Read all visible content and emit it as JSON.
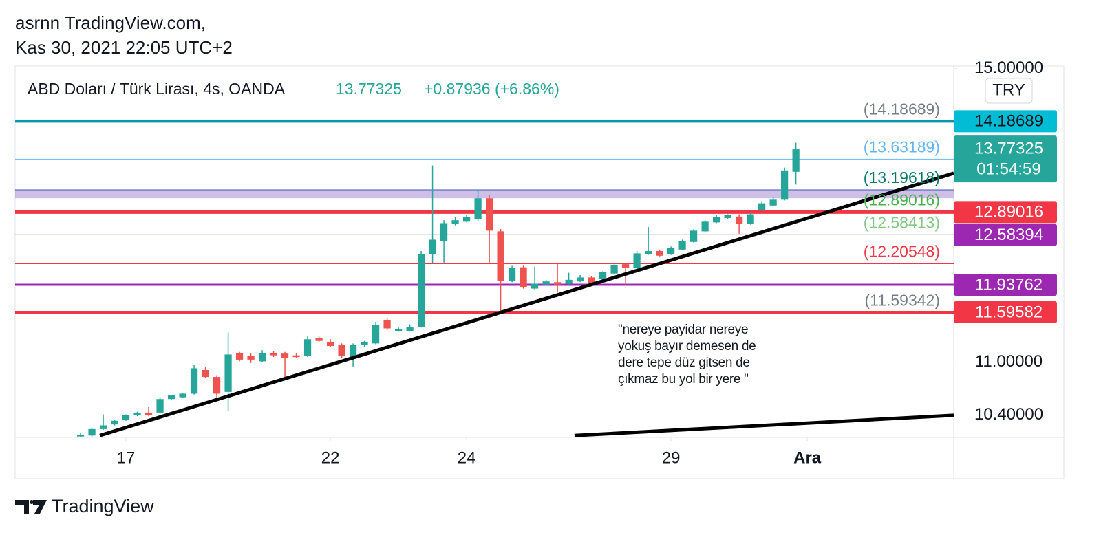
{
  "header": {
    "user": "asrnn TradingView.com,",
    "date": "Kas 30, 2021 22:05 UTC+2"
  },
  "footer": {
    "brand": "TradingView"
  },
  "chart_data": {
    "type": "candlestick",
    "title": "ABD Doları / Türk Lirası, 4s, OANDA",
    "last_price": 13.77325,
    "change": "+0.87936 (+6.86%)",
    "currency": "TRY",
    "countdown": "01:54:59",
    "up_color": "#26a69a",
    "down_color": "#ef5350",
    "log_scale": true,
    "open": [
      10.17,
      10.18,
      10.25,
      10.3,
      10.35,
      10.4,
      10.43,
      10.43,
      10.58,
      10.6,
      10.64,
      10.91,
      10.83,
      10.66,
      11.11,
      11.07,
      11.01,
      11.11,
      11.1,
      11.08,
      11.07,
      11.28,
      11.24,
      11.2,
      11.05,
      11.2,
      11.22,
      11.5,
      11.37,
      11.37,
      11.42,
      12.33,
      12.5,
      12.73,
      12.76,
      12.8,
      13.08,
      12.63,
      11.99,
      12.16,
      11.89,
      11.94,
      11.97,
      11.95,
      11.98,
      12.03,
      12.01,
      12.08,
      12.2,
      12.15,
      12.33,
      12.37,
      12.33,
      12.39,
      12.49,
      12.63,
      12.75,
      12.81,
      12.83,
      12.73,
      12.92,
      12.98,
      13.06,
      13.45
    ],
    "high": [
      10.21,
      10.26,
      10.41,
      10.35,
      10.41,
      10.44,
      10.49,
      10.6,
      10.62,
      10.65,
      10.97,
      10.94,
      10.85,
      11.35,
      11.12,
      11.11,
      11.14,
      11.13,
      11.12,
      11.11,
      11.31,
      11.3,
      11.27,
      11.22,
      11.22,
      11.25,
      11.48,
      11.52,
      11.41,
      11.45,
      12.37,
      13.54,
      12.78,
      12.82,
      12.85,
      13.2,
      13.12,
      12.66,
      12.18,
      12.18,
      12.17,
      12.0,
      12.22,
      12.09,
      12.06,
      12.05,
      12.11,
      12.2,
      12.22,
      12.37,
      12.69,
      12.39,
      12.43,
      12.52,
      12.66,
      12.78,
      12.85,
      12.86,
      12.86,
      12.89,
      13.04,
      13.09,
      13.51,
      13.87
    ],
    "low": [
      10.16,
      10.17,
      10.24,
      10.29,
      10.34,
      10.39,
      10.39,
      10.42,
      10.57,
      10.59,
      10.63,
      10.82,
      10.58,
      10.45,
      11.01,
      10.99,
      11.0,
      11.06,
      10.82,
      11.05,
      11.06,
      11.24,
      11.18,
      11.05,
      10.95,
      11.18,
      11.21,
      11.38,
      11.36,
      11.36,
      11.41,
      12.21,
      12.22,
      12.71,
      12.75,
      12.76,
      12.22,
      11.61,
      11.97,
      11.89,
      11.87,
      11.93,
      11.84,
      11.94,
      11.97,
      11.95,
      12.0,
      12.07,
      11.94,
      12.13,
      12.32,
      12.3,
      12.32,
      12.38,
      12.48,
      12.62,
      12.74,
      12.8,
      12.6,
      12.72,
      12.91,
      12.97,
      13.05,
      13.27
    ],
    "close": [
      10.19,
      10.25,
      10.29,
      10.34,
      10.4,
      10.43,
      10.4,
      10.58,
      10.62,
      10.64,
      10.93,
      10.83,
      10.64,
      11.09,
      11.03,
      11.03,
      11.11,
      11.08,
      11.05,
      11.06,
      11.27,
      11.25,
      11.19,
      11.07,
      11.2,
      11.24,
      11.44,
      11.4,
      11.39,
      11.42,
      12.33,
      12.52,
      12.74,
      12.78,
      12.82,
      13.08,
      12.64,
      11.99,
      12.15,
      11.91,
      11.95,
      11.98,
      11.94,
      12.0,
      12.03,
      11.96,
      12.1,
      12.19,
      12.15,
      12.34,
      12.37,
      12.31,
      12.41,
      12.5,
      12.64,
      12.76,
      12.82,
      12.85,
      12.73,
      12.86,
      13.01,
      13.06,
      13.47,
      13.77325
    ],
    "xlim": [
      -5.76,
      76.9
    ],
    "xticks": [
      {
        "value": 4,
        "label": "17"
      },
      {
        "value": 22,
        "label": "22"
      },
      {
        "value": 34,
        "label": "24"
      },
      {
        "value": 52,
        "label": "29"
      },
      {
        "value": 64,
        "label": "Ara"
      }
    ],
    "ylim": [
      10.16,
      15.04
    ],
    "yticks": [
      {
        "value": 15,
        "label": "15.00000"
      },
      {
        "value": 11,
        "label": "11.00000"
      },
      {
        "value": 10.4,
        "label": "10.40000"
      }
    ],
    "zones": [
      {
        "top": 13.19618,
        "bottom": 13.08,
        "color": "#b39ddb"
      }
    ],
    "levels": [
      {
        "value": 14.18689,
        "color": "#0097a7",
        "width": 4,
        "label": "(14.18689)",
        "label_color": "#787b86"
      },
      {
        "value": 13.63189,
        "color": "#64b5f6",
        "width": 1,
        "label": "(13.63189)",
        "label_color": "#64b5f6"
      },
      {
        "value": 13.19618,
        "color": "#3f51b5",
        "width": 1,
        "label": "(13.19618)",
        "label_color": "#00796b"
      },
      {
        "value": 12.89016,
        "color": "#f23645",
        "width": 5,
        "label": "(12.89016)",
        "label_color": "#4caf50"
      },
      {
        "value": 12.58413,
        "color": "#4a148c",
        "width": 1,
        "label": "(12.58413)",
        "label_color": "#81c784"
      },
      {
        "value": 12.58394,
        "color": "#9c27b0",
        "width": 1
      },
      {
        "value": 12.20548,
        "color": "#f23645",
        "width": 1,
        "label": "(12.20548)",
        "label_color": "#f23645"
      },
      {
        "value": 11.93762,
        "color": "#9c27b0",
        "width": 3
      },
      {
        "value": 11.59342,
        "color": "#787b86",
        "width": 1,
        "label": "(11.59342)",
        "label_color": "#787b86"
      },
      {
        "value": 11.59582,
        "color": "#f23645",
        "width": 4
      }
    ],
    "price_tags": [
      {
        "value": 14.18689,
        "label": "14.18689",
        "color": "#00bcd4"
      },
      {
        "value": 12.89016,
        "label": "12.89016",
        "color": "#f23645"
      },
      {
        "value": 12.58394,
        "label": "12.58394",
        "color": "#9c27b0"
      },
      {
        "value": 11.93762,
        "label": "11.93762",
        "color": "#9c27b0"
      },
      {
        "value": 11.59582,
        "label": "11.59582",
        "color": "#f23645"
      }
    ],
    "last_color": "#26a69a",
    "trendlines": [
      {
        "x1": 1.7,
        "y1": 10.18,
        "x2": 76.9,
        "y2": 13.43,
        "color": "#000000"
      },
      {
        "x1": 43.5,
        "y1": 10.18,
        "x2": 76.9,
        "y2": 10.4,
        "color": "#000000"
      }
    ],
    "annotation": [
      "\"nereye payidar nereye",
      "yokuş bayır demesen de",
      "dere tepe düz gitsen de",
      "çıkmaz bu yol bir yere \""
    ]
  }
}
